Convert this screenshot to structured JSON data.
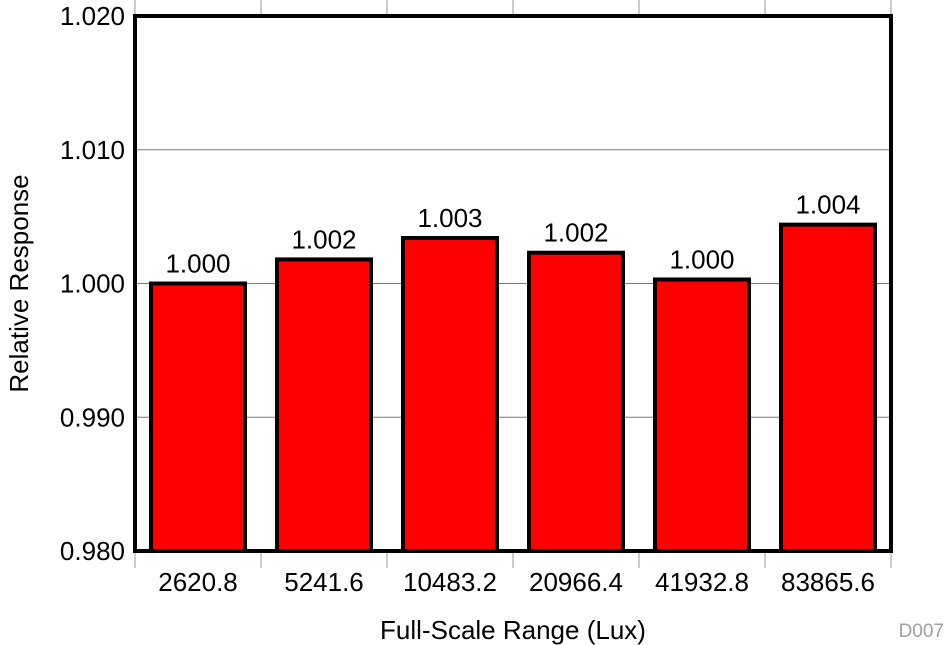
{
  "chart_data": {
    "type": "bar",
    "categories": [
      "2620.8",
      "5241.6",
      "10483.2",
      "20966.4",
      "41932.8",
      "83865.6"
    ],
    "values": [
      1.0,
      1.0018,
      1.0034,
      1.0023,
      1.0003,
      1.0044
    ],
    "data_labels": [
      "1.000",
      "1.002",
      "1.003",
      "1.002",
      "1.000",
      "1.004"
    ],
    "xlabel": "Full-Scale Range (Lux)",
    "ylabel": "Relative Response",
    "ylim": [
      0.98,
      1.02
    ],
    "yticks": [
      0.98,
      0.99,
      1.0,
      1.01,
      1.02
    ],
    "ytick_labels": [
      "0.980",
      "0.990",
      "1.000",
      "1.010",
      "1.020"
    ],
    "grid": true,
    "bar_color": "#ff0000",
    "bar_edge_color": "#000000",
    "figure_id": "D007"
  }
}
